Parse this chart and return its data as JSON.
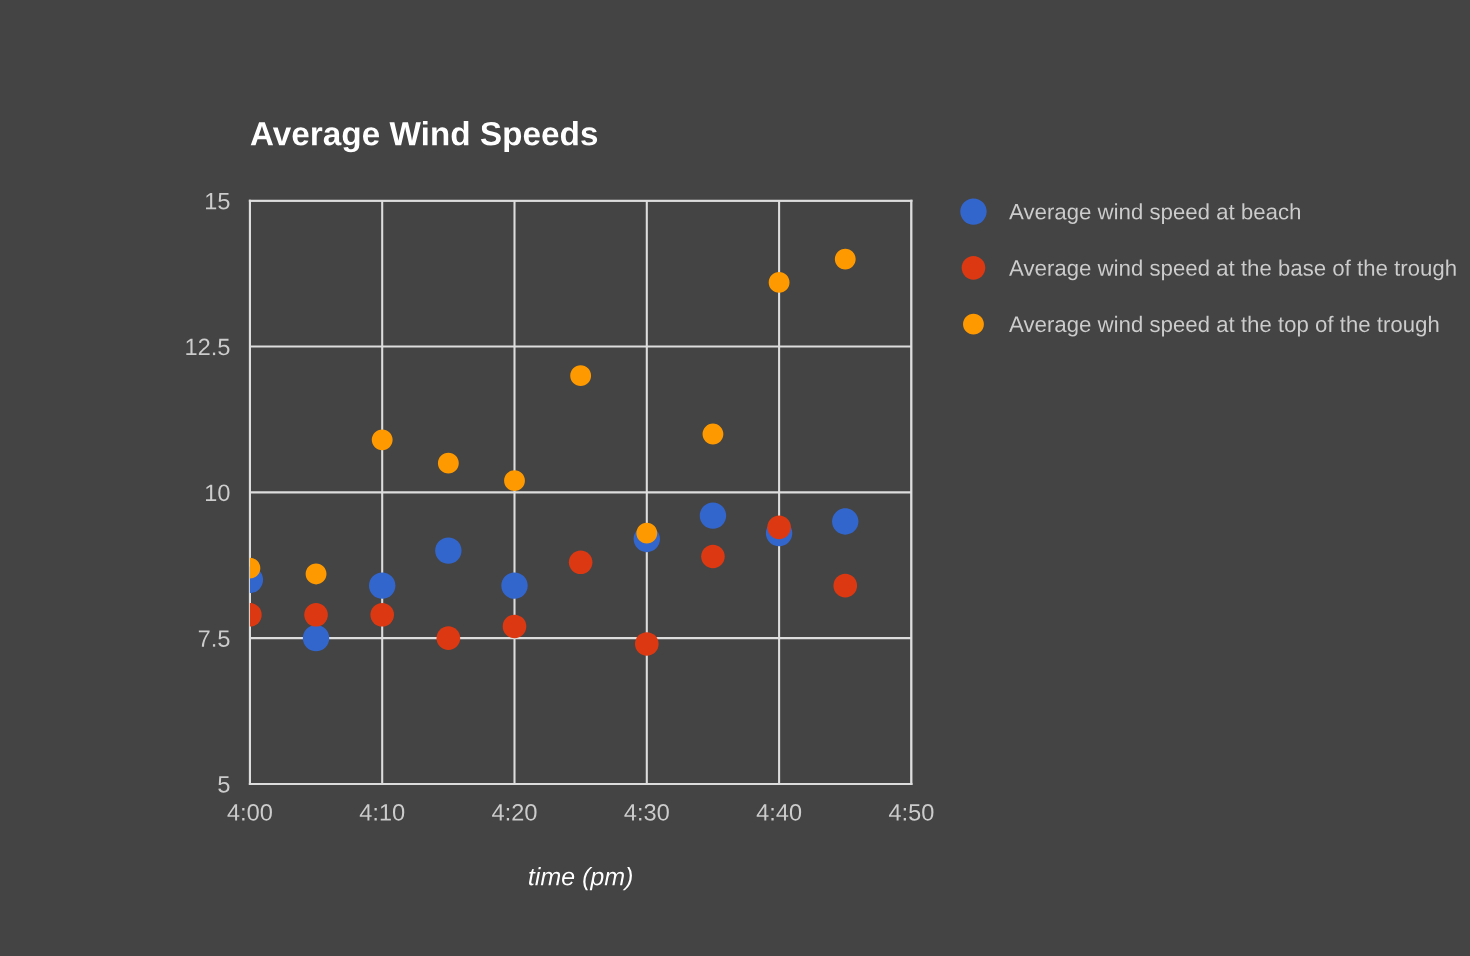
{
  "chart_data": {
    "type": "scatter",
    "title": "Average Wind Speeds",
    "xlabel": "time (pm)",
    "categories": [
      "4:00",
      null,
      "4:10",
      null,
      "4:20",
      null,
      "4:30",
      null,
      "4:40",
      null,
      "4:50"
    ],
    "series": [
      {
        "name": "Average wind speed at beach",
        "color": "#3366cc",
        "values": [
          8.5,
          7.5,
          8.4,
          9.0,
          8.4,
          null,
          9.2,
          9.6,
          9.3,
          9.5,
          null
        ]
      },
      {
        "name": "Average wind speed at the base of the trough",
        "color": "#dc3912",
        "values": [
          7.9,
          7.9,
          7.9,
          7.5,
          7.7,
          8.8,
          7.4,
          8.9,
          9.4,
          8.4,
          null
        ]
      },
      {
        "name": "Average wind speed at the top of the trough",
        "color": "#ff9900",
        "values": [
          8.7,
          8.6,
          10.9,
          10.5,
          10.2,
          12.0,
          9.3,
          11.0,
          13.6,
          14.0,
          null
        ]
      }
    ],
    "ylim": [
      5,
      15
    ],
    "yticks": [
      5,
      7.5,
      10,
      12.5,
      15
    ],
    "grid": true,
    "legend": "right",
    "marker": "circle"
  }
}
